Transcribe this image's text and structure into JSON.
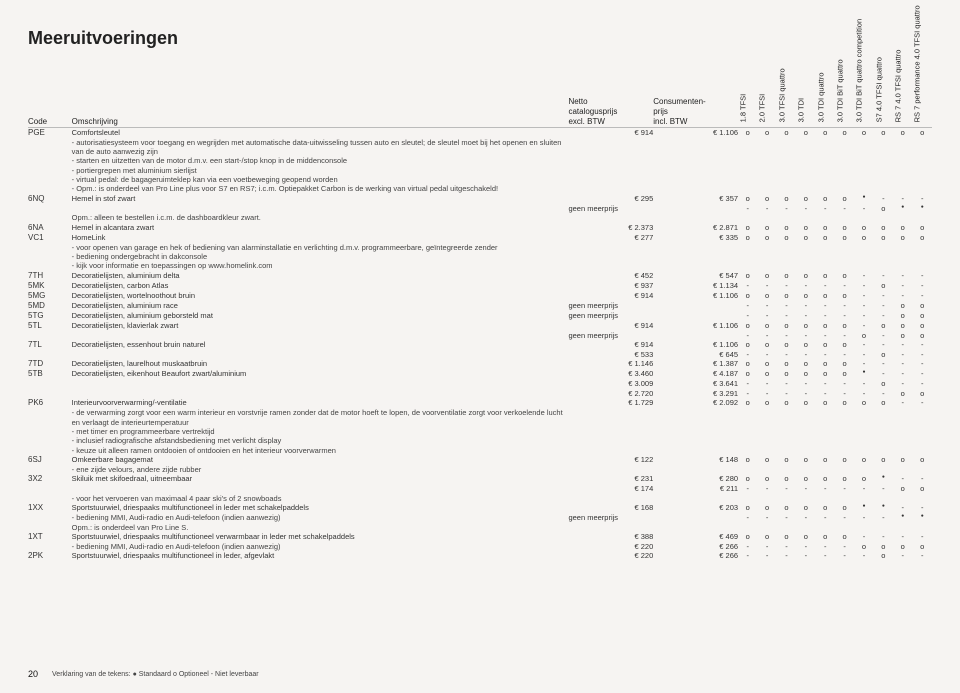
{
  "page": {
    "title": "Meeruitvoeringen",
    "number": "20",
    "legend": "Verklaring van de tekens: ● Standaard  o Optioneel  - Niet leverbaar"
  },
  "headers": {
    "code": "Code",
    "desc": "Omschrijving",
    "net_l1": "Netto",
    "net_l2": "catalogusprijs",
    "net_l3": "excl. BTW",
    "cons_l1": "Consumenten-",
    "cons_l2": "prijs",
    "cons_l3": "incl. BTW"
  },
  "engines": [
    "1.8 TFSI",
    "2.0 TFSI",
    "3.0 TFSI quattro",
    "3.0 TDI",
    "3.0 TDI quattro",
    "3.0 TDI BiT quattro",
    "3.0 TDI BiT quattro competition",
    "S7 4.0 TFSI quattro",
    "RS 7 4.0 TFSI quattro",
    "RS 7 performance 4.0 TFSI quattro"
  ],
  "rows": [
    {
      "code": "PGE",
      "name": "Comfortsleutel",
      "net": "914",
      "cons": "1.106",
      "a": [
        "o",
        "o",
        "o",
        "o",
        "o",
        "o",
        "o",
        "o",
        "o",
        "o"
      ]
    },
    {
      "note": "- autorisatiesysteem voor toegang en wegrijden met automatische data-uitwisseling tussen auto en sleutel; de sleutel moet bij het openen en sluiten van de auto aanwezig zijn"
    },
    {
      "note": "- starten en uitzetten van de motor d.m.v. een start-/stop knop in de middenconsole"
    },
    {
      "note": "- portiergrepen met aluminium sierlijst"
    },
    {
      "note": "- virtual pedal: de bagageruimteklep kan via een voetbeweging geopend worden"
    },
    {
      "note": "- Opm.: is onderdeel van Pro Line plus voor S7 en RS7; i.c.m. Optiepakket Carbon is de werking van virtual pedal uitgeschakeld!"
    },
    {
      "code": "6NQ",
      "name": "Hemel in stof zwart",
      "net": "295",
      "cons": "357",
      "a": [
        "o",
        "o",
        "o",
        "o",
        "o",
        "o",
        "●",
        "-",
        "-",
        "-"
      ]
    },
    {
      "net": "geen meerprijs",
      "cons": "",
      "a": [
        "-",
        "-",
        "-",
        "-",
        "-",
        "-",
        "-",
        "o",
        "●",
        "●"
      ]
    },
    {
      "note": "Opm.: alleen te bestellen i.c.m. de dashboardkleur zwart."
    },
    {
      "code": "6NA",
      "name": "Hemel in alcantara zwart",
      "net": "2.373",
      "cons": "2.871",
      "a": [
        "o",
        "o",
        "o",
        "o",
        "o",
        "o",
        "o",
        "o",
        "o",
        "o"
      ]
    },
    {
      "code": "VC1",
      "name": "HomeLink",
      "net": "277",
      "cons": "335",
      "a": [
        "o",
        "o",
        "o",
        "o",
        "o",
        "o",
        "o",
        "o",
        "o",
        "o"
      ]
    },
    {
      "note": "- voor openen van garage en hek of bediening van alarminstallatie en verlichting d.m.v. programmeerbare, geïntegreerde zender"
    },
    {
      "note": "- bediening ondergebracht in dakconsole"
    },
    {
      "note": "- kijk voor informatie en toepassingen op www.homelink.com"
    },
    {
      "code": "7TH",
      "name": "Decoratielijsten, aluminium delta",
      "net": "452",
      "cons": "547",
      "a": [
        "o",
        "o",
        "o",
        "o",
        "o",
        "o",
        "-",
        "-",
        "-",
        "-"
      ]
    },
    {
      "code": "5MK",
      "name": "Decoratielijsten, carbon Atlas",
      "net": "937",
      "cons": "1.134",
      "a": [
        "-",
        "-",
        "-",
        "-",
        "-",
        "-",
        "-",
        "o",
        "-",
        "-"
      ]
    },
    {
      "code": "5MG",
      "name": "Decoratielijsten, wortelnoothout bruin",
      "net": "914",
      "cons": "1.106",
      "a": [
        "o",
        "o",
        "o",
        "o",
        "o",
        "o",
        "-",
        "-",
        "-",
        "-"
      ]
    },
    {
      "code": "5MD",
      "name": "Decoratielijsten, aluminium race",
      "net": "geen meerprijs",
      "cons": "",
      "a": [
        "-",
        "-",
        "-",
        "-",
        "-",
        "-",
        "-",
        "-",
        "o",
        "o"
      ]
    },
    {
      "code": "5TG",
      "name": "Decoratielijsten, aluminium geborsteld mat",
      "net": "geen meerprijs",
      "cons": "",
      "a": [
        "-",
        "-",
        "-",
        "-",
        "-",
        "-",
        "-",
        "-",
        "o",
        "o"
      ]
    },
    {
      "code": "5TL",
      "name": "Decoratielijsten, klavierlak zwart",
      "net": "914",
      "cons": "1.106",
      "a": [
        "o",
        "o",
        "o",
        "o",
        "o",
        "o",
        "-",
        "o",
        "o",
        "o"
      ]
    },
    {
      "net": "geen meerprijs",
      "cons": "",
      "a": [
        "-",
        "-",
        "-",
        "-",
        "-",
        "-",
        "o",
        "-",
        "o",
        "o"
      ]
    },
    {
      "code": "7TL",
      "name": "Decoratielijsten, essenhout bruin naturel",
      "net": "914",
      "cons": "1.106",
      "a": [
        "o",
        "o",
        "o",
        "o",
        "o",
        "o",
        "-",
        "-",
        "-",
        "-"
      ]
    },
    {
      "net": "533",
      "cons": "645",
      "a": [
        "-",
        "-",
        "-",
        "-",
        "-",
        "-",
        "-",
        "o",
        "-",
        "-"
      ]
    },
    {
      "code": "7TD",
      "name": "Decoratielijsten, laurelhout muskaatbruin",
      "net": "1.146",
      "cons": "1.387",
      "a": [
        "o",
        "o",
        "o",
        "o",
        "o",
        "o",
        "-",
        "-",
        "-",
        "-"
      ]
    },
    {
      "code": "5TB",
      "name": "Decoratielijsten, eikenhout Beaufort zwart/aluminium",
      "net": "3.460",
      "cons": "4.187",
      "a": [
        "o",
        "o",
        "o",
        "o",
        "o",
        "o",
        "●",
        "-",
        "-",
        "-"
      ]
    },
    {
      "net": "3.009",
      "cons": "3.641",
      "a": [
        "-",
        "-",
        "-",
        "-",
        "-",
        "-",
        "-",
        "o",
        "-",
        "-"
      ]
    },
    {
      "net": "2.720",
      "cons": "3.291",
      "a": [
        "-",
        "-",
        "-",
        "-",
        "-",
        "-",
        "-",
        "-",
        "o",
        "o"
      ]
    },
    {
      "code": "PK6",
      "name": "Interieurvoorverwarming/-ventilatie",
      "net": "1.729",
      "cons": "2.092",
      "a": [
        "o",
        "o",
        "o",
        "o",
        "o",
        "o",
        "o",
        "o",
        "-",
        "-"
      ]
    },
    {
      "note": "- de verwarming zorgt voor een warm interieur en vorstvrije ramen zonder dat de motor hoeft te lopen, de voorventilatie zorgt voor verkoelende lucht en verlaagt de interieurtemperatuur"
    },
    {
      "note": "- met timer en programmeerbare vertrektijd"
    },
    {
      "note": "- inclusief radiografische afstandsbediening met verlicht display"
    },
    {
      "note": "- keuze uit alleen ramen ontdooien of ontdooien en het interieur voorverwarmen"
    },
    {
      "code": "6SJ",
      "name": "Omkeerbare bagagemat",
      "net": "122",
      "cons": "148",
      "a": [
        "o",
        "o",
        "o",
        "o",
        "o",
        "o",
        "o",
        "o",
        "o",
        "o"
      ]
    },
    {
      "note": "- ene zijde velours, andere zijde rubber"
    },
    {
      "code": "3X2",
      "name": "Skiluik met skifoedraal, uitneembaar",
      "net": "231",
      "cons": "280",
      "a": [
        "o",
        "o",
        "o",
        "o",
        "o",
        "o",
        "o",
        "●",
        "-",
        "-"
      ]
    },
    {
      "net": "174",
      "cons": "211",
      "a": [
        "-",
        "-",
        "-",
        "-",
        "-",
        "-",
        "-",
        "-",
        "o",
        "o"
      ]
    },
    {
      "note": "- voor het vervoeren van maximaal 4 paar ski's of 2 snowboads"
    },
    {
      "code": "1XX",
      "name": "Sportstuurwiel, driespaaks multifunctioneel in leder met schakelpaddels",
      "net": "168",
      "cons": "203",
      "a": [
        "o",
        "o",
        "o",
        "o",
        "o",
        "o",
        "●",
        "●",
        "-",
        "-"
      ]
    },
    {
      "note": "- bediening MMI, Audi-radio en Audi-telefoon (indien aanwezig)",
      "net": "geen meerprijs",
      "cons": "",
      "a": [
        "-",
        "-",
        "-",
        "-",
        "-",
        "-",
        "-",
        "-",
        "●",
        "●"
      ]
    },
    {
      "note": "Opm.: is onderdeel van Pro Line S."
    },
    {
      "code": "1XT",
      "name": "Sportstuurwiel, driespaaks multifunctioneel verwarmbaar in leder met schakelpaddels",
      "net": "388",
      "cons": "469",
      "a": [
        "o",
        "o",
        "o",
        "o",
        "o",
        "o",
        "-",
        "-",
        "-",
        "-"
      ]
    },
    {
      "note": "- bediening MMI, Audi-radio en Audi-telefoon (indien aanwezig)",
      "net": "220",
      "cons": "266",
      "a": [
        "-",
        "-",
        "-",
        "-",
        "-",
        "-",
        "o",
        "o",
        "o",
        "o"
      ]
    },
    {
      "code": "2PK",
      "name": "Sportstuurwiel, driespaaks multifunctioneel in leder, afgevlakt",
      "net": "220",
      "cons": "266",
      "a": [
        "-",
        "-",
        "-",
        "-",
        "-",
        "-",
        "-",
        "o",
        "-",
        "-"
      ]
    }
  ]
}
